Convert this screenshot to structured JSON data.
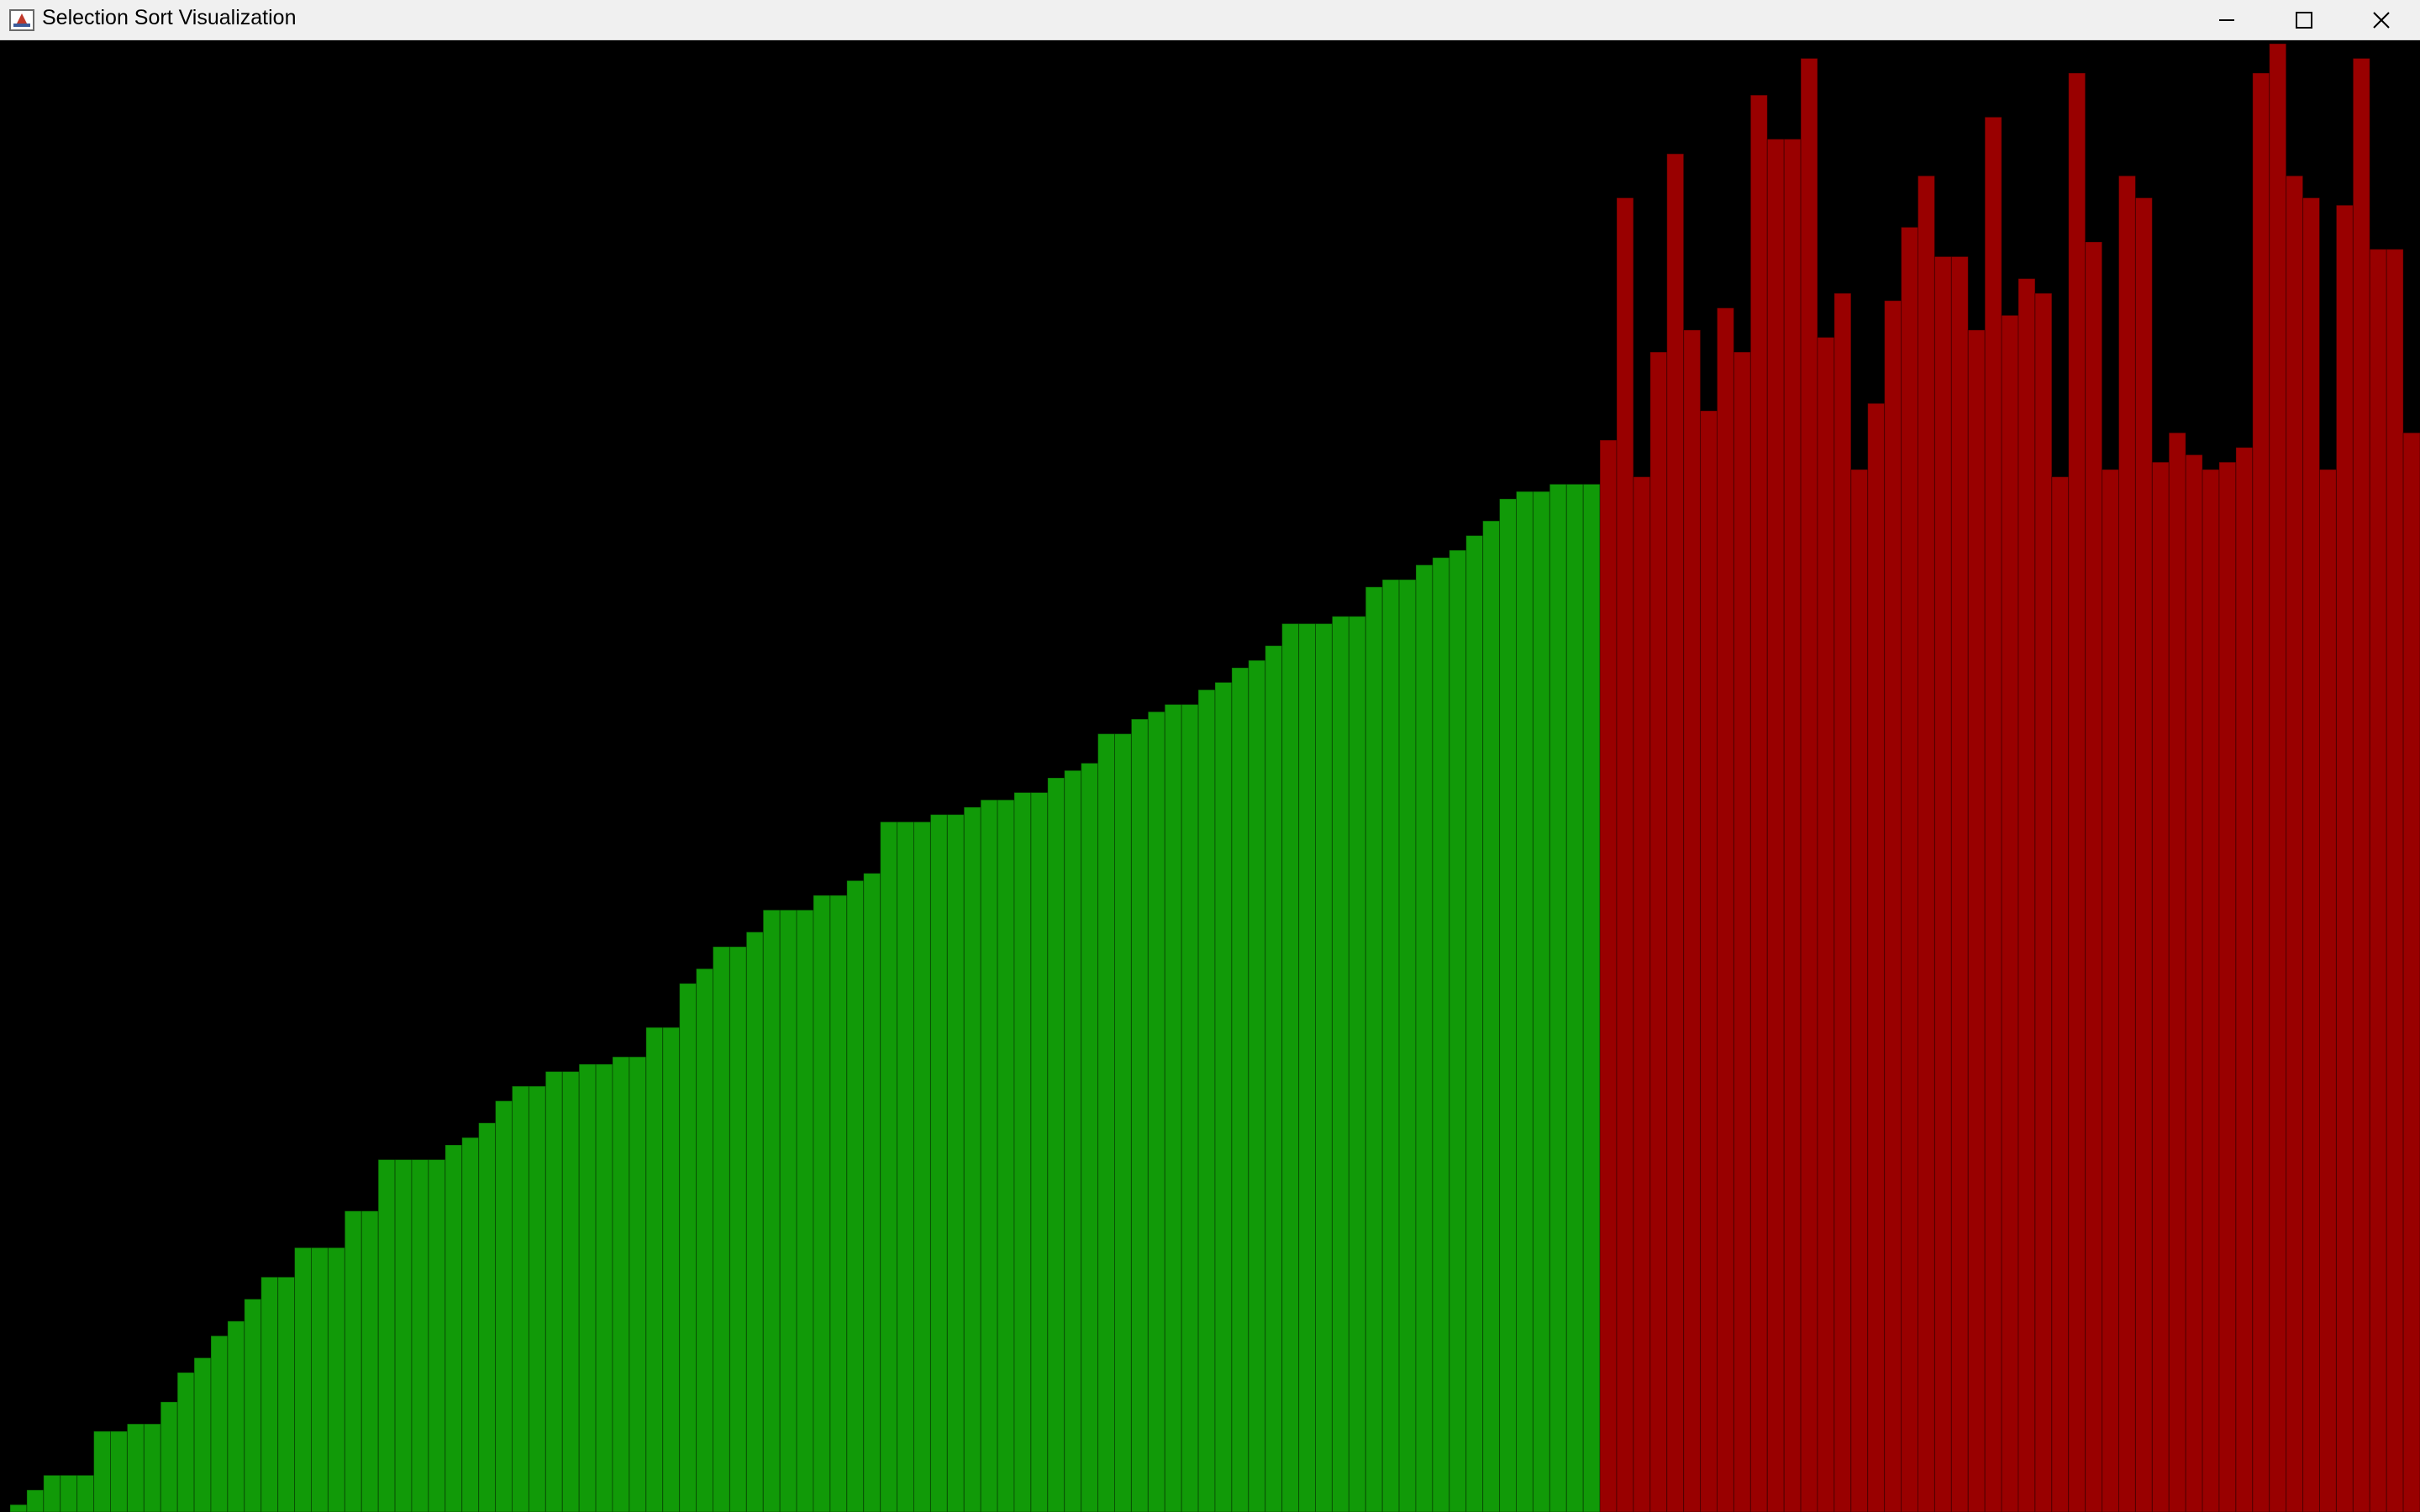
{
  "window": {
    "title": "Selection Sort Visualization",
    "icons": {
      "app": "java-app-icon",
      "minimize": "minimize-icon",
      "maximize": "maximize-icon",
      "close": "close-icon"
    }
  },
  "colors": {
    "background": "#000000",
    "sorted": "#119a08",
    "unsorted": "#990000",
    "bar_border": "#000000"
  },
  "chart_data": {
    "type": "bar",
    "sorted_count": 95,
    "values": [
      1,
      3,
      5,
      5,
      5,
      11,
      11,
      12,
      12,
      15,
      19,
      21,
      24,
      26,
      29,
      32,
      32,
      36,
      36,
      36,
      41,
      41,
      48,
      48,
      48,
      48,
      50,
      51,
      53,
      56,
      58,
      58,
      60,
      60,
      61,
      61,
      62,
      62,
      66,
      66,
      72,
      74,
      77,
      77,
      79,
      82,
      82,
      82,
      84,
      84,
      86,
      87,
      94,
      94,
      94,
      95,
      95,
      96,
      97,
      97,
      98,
      98,
      100,
      101,
      102,
      106,
      106,
      108,
      109,
      110,
      110,
      112,
      113,
      115,
      116,
      118,
      121,
      121,
      121,
      122,
      122,
      126,
      127,
      127,
      129,
      130,
      131,
      133,
      135,
      138,
      139,
      139,
      140,
      140,
      140,
      146,
      179,
      141,
      158,
      185,
      161,
      150,
      164,
      158,
      193,
      187,
      187,
      198,
      160,
      166,
      142,
      151,
      165,
      175,
      182,
      171,
      171,
      161,
      190,
      163,
      168,
      166,
      141,
      196,
      173,
      142,
      182,
      179,
      143,
      147,
      144,
      142,
      143,
      145,
      196,
      200,
      182,
      179,
      142,
      178,
      198,
      172,
      172,
      147
    ]
  }
}
